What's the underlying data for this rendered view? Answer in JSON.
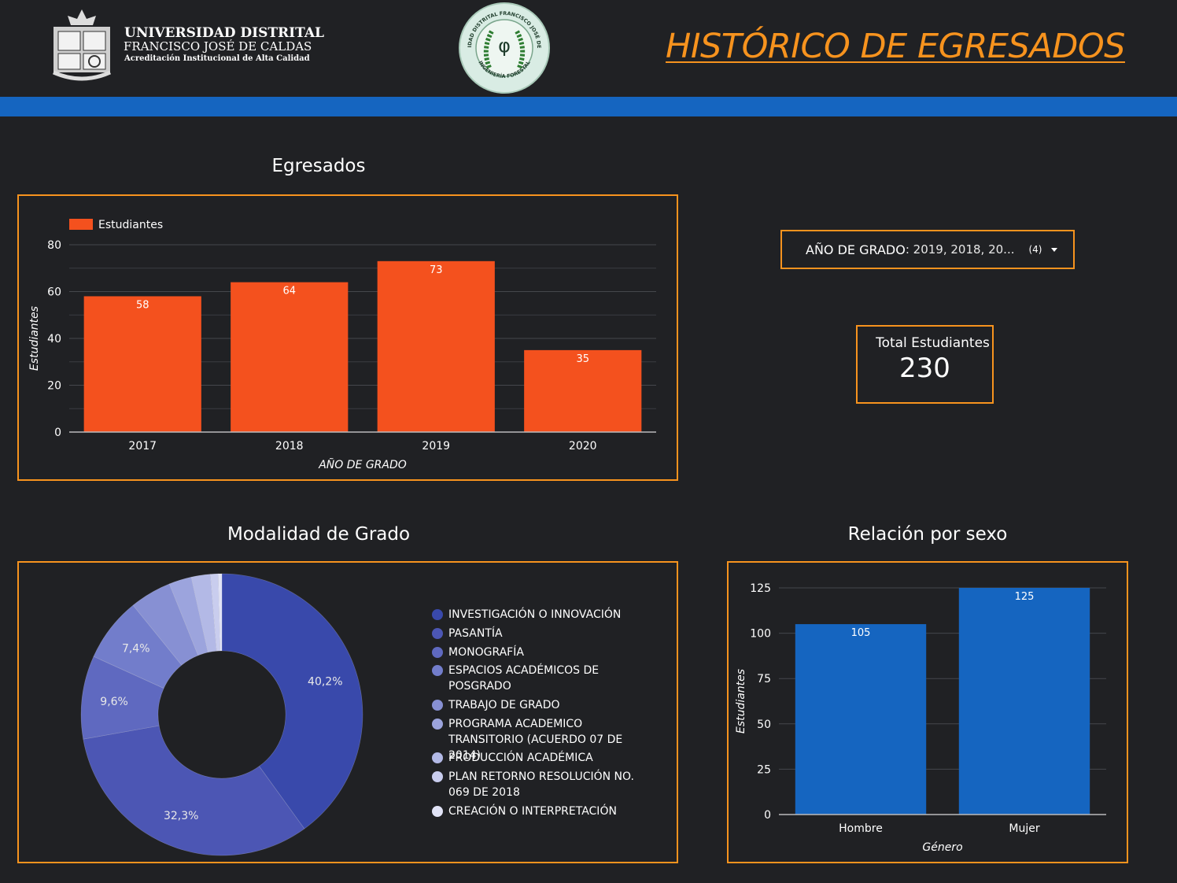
{
  "header": {
    "university_name": "UNIVERSIDAD DISTRITAL",
    "university_sub": "FRANCISCO JOSÉ DE CALDAS",
    "university_accreditation": "Acreditación Institucional de Alta Calidad",
    "seal_text": "UNIVERSIDAD DISTRITAL FRANCISCO JOSÉ DE CALDAS",
    "seal_bottom_text": "INGENIERÍA FORESTAL",
    "seal_symbol": "φ",
    "title": "HISTÓRICO DE EGRESADOS",
    "title_color": "#f7931e",
    "bar_color": "#1565c0"
  },
  "filter": {
    "label": "AÑO DE GRADO",
    "value": ": 2019, 2018, 20...",
    "count": "(4)"
  },
  "scorecard": {
    "label": "Total Estudiantes",
    "value": "230"
  },
  "chart_data": [
    {
      "type": "bar",
      "title": "Egresados",
      "categories": [
        "2017",
        "2018",
        "2019",
        "2020"
      ],
      "series": [
        {
          "name": "Estudiantes",
          "values": [
            58,
            64,
            73,
            35
          ],
          "color": "#f4511e"
        }
      ],
      "xlabel": "AÑO DE GRADO",
      "ylabel": "Estudiantes",
      "ylim": [
        0,
        80
      ],
      "yticks": [
        0,
        20,
        40,
        60,
        80
      ],
      "grid": true,
      "legend": "top-left"
    },
    {
      "type": "pie",
      "title": "Modalidad de Grado",
      "donut": true,
      "slices": [
        {
          "label": "INVESTIGACIÓN O INNOVACIÓN",
          "value": 40.2,
          "display": "40,2%",
          "color": "#3949ab"
        },
        {
          "label": "PASANTÍA",
          "value": 32.3,
          "display": "32,3%",
          "color": "#4c56b4"
        },
        {
          "label": "MONOGRAFÍA",
          "value": 9.6,
          "display": "9,6%",
          "color": "#5f69c0"
        },
        {
          "label": "ESPACIOS ACADÉMICOS DE POSGRADO",
          "value": 7.4,
          "display": "7,4%",
          "color": "#727dcb"
        },
        {
          "label": "TRABAJO DE GRADO",
          "value": 4.8,
          "display": "",
          "color": "#8790d3"
        },
        {
          "label": "PROGRAMA ACADEMICO TRANSITORIO (ACUERDO 07 DE 2014)",
          "value": 2.6,
          "display": "",
          "color": "#9ca4dd"
        },
        {
          "label": "PRODUCCIÓN ACADÉMICA",
          "value": 2.2,
          "display": "",
          "color": "#b3b9e6"
        },
        {
          "label": "PLAN RETORNO RESOLUCIÓN NO. 069 DE 2018",
          "value": 0.9,
          "display": "",
          "color": "#c9cdee"
        },
        {
          "label": "CREACIÓN O INTERPRETACIÓN",
          "value": 0.4,
          "display": "",
          "color": "#e1e3f6"
        }
      ],
      "legend": "right"
    },
    {
      "type": "bar",
      "title": "Relación por sexo",
      "categories": [
        "Hombre",
        "Mujer"
      ],
      "series": [
        {
          "name": "Estudiantes",
          "values": [
            105,
            125
          ],
          "color": "#1565c0"
        }
      ],
      "xlabel": "Género",
      "ylabel": "Estudiantes",
      "ylim": [
        0,
        125
      ],
      "yticks": [
        0,
        25,
        50,
        75,
        100,
        125
      ],
      "grid": true
    }
  ]
}
